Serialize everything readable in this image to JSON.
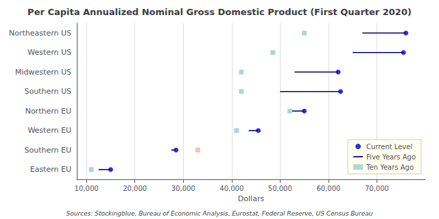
{
  "chart_data": {
    "type": "dot",
    "title": "Per Capita Annualized Nominal Gross Domestic Product (First Quarter 2020)",
    "xlabel": "Dollars",
    "categories": [
      "Northeastern US",
      "Western US",
      "Midwestern US",
      "Southern US",
      "Northern EU",
      "Western EU",
      "Southern EU",
      "Eastern EU"
    ],
    "series": [
      {
        "name": "Current Level",
        "color": "#0000cc",
        "marker": "circle",
        "values": [
          76000,
          75500,
          62000,
          62500,
          55000,
          45500,
          28500,
          15000
        ]
      },
      {
        "name": "Five Years Ago",
        "color": "#000080",
        "line_style": "solid",
        "values": [
          67000,
          65000,
          53000,
          50000,
          52500,
          43500,
          27500,
          12500
        ]
      },
      {
        "name": "Ten Years Ago",
        "color": "#98cece",
        "marker": "square",
        "colors": [
          "#98cece",
          "#98cece",
          "#98cece",
          "#98cece",
          "#98cece",
          "#98cece",
          "#f0b0b0",
          "#98cece"
        ],
        "values": [
          55000,
          48500,
          42000,
          42000,
          52000,
          41000,
          33000,
          11000
        ]
      }
    ],
    "xlim": [
      8000,
      80000
    ],
    "xticks": [
      {
        "value": 10000,
        "label": "10,000"
      },
      {
        "value": 20000,
        "label": "20,000"
      },
      {
        "value": 30000,
        "label": "30,000"
      },
      {
        "value": 40000,
        "label": "40,000"
      },
      {
        "value": 50000,
        "label": "50,000"
      },
      {
        "value": 60000,
        "label": "60,000"
      },
      {
        "value": 70000,
        "label": "70,000"
      }
    ],
    "grid": true,
    "legend": "lower right",
    "annotations": [
      "Sources: Stockingblue, Bureau of Economic Analysis, Eurostat, Federal Reserve, US Census Bureau"
    ]
  }
}
